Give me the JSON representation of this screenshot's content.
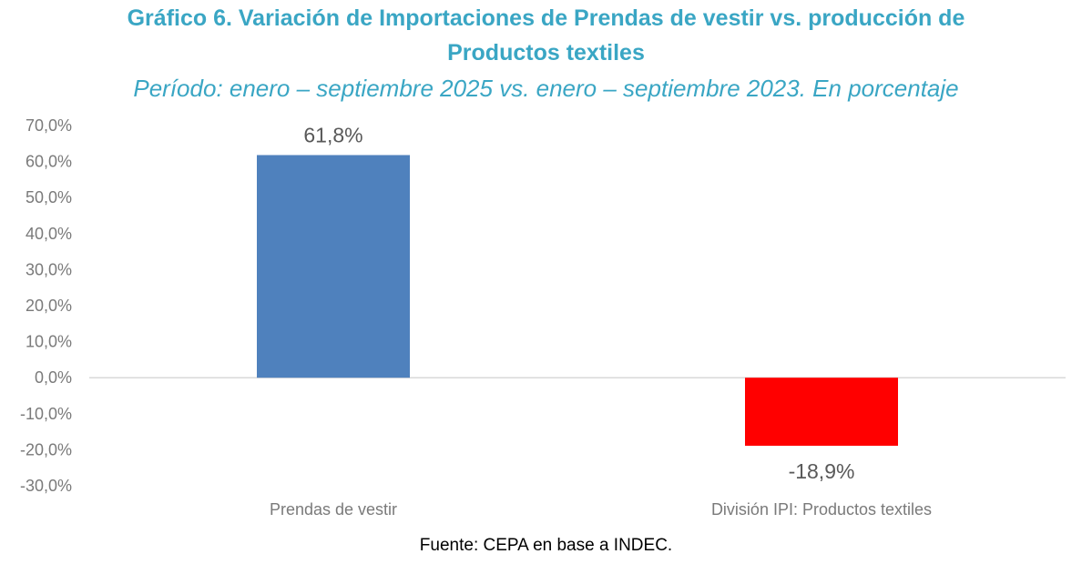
{
  "chart_data": {
    "type": "bar",
    "title": "Gráfico 6. Variación de Importaciones de Prendas de vestir vs. producción de Productos textiles",
    "title_line1": "Gráfico 6. Variación de Importaciones de Prendas de vestir vs. producción de",
    "title_line2": "Productos textiles",
    "subtitle": "Período: enero – septiembre 2025 vs. enero – septiembre 2023. En porcentaje",
    "xlabel": "",
    "ylabel": "",
    "categories": [
      "Prendas de vestir",
      "División IPI: Productos textiles"
    ],
    "values": [
      61.8,
      -18.9
    ],
    "data_labels": [
      "61,8%",
      "-18,9%"
    ],
    "bar_colors": [
      "#4f81bd",
      "#ff0000"
    ],
    "ylim": [
      -30,
      70
    ],
    "yticks": [
      70,
      60,
      50,
      40,
      30,
      20,
      10,
      0,
      -10,
      -20,
      -30
    ],
    "ytick_labels": [
      "70,0%",
      "60,0%",
      "50,0%",
      "40,0%",
      "30,0%",
      "20,0%",
      "10,0%",
      "0,0%",
      "-10,0%",
      "-20,0%",
      "-30,0%"
    ],
    "grid": false,
    "legend": "none",
    "source": "Fuente: CEPA en base a INDEC."
  }
}
